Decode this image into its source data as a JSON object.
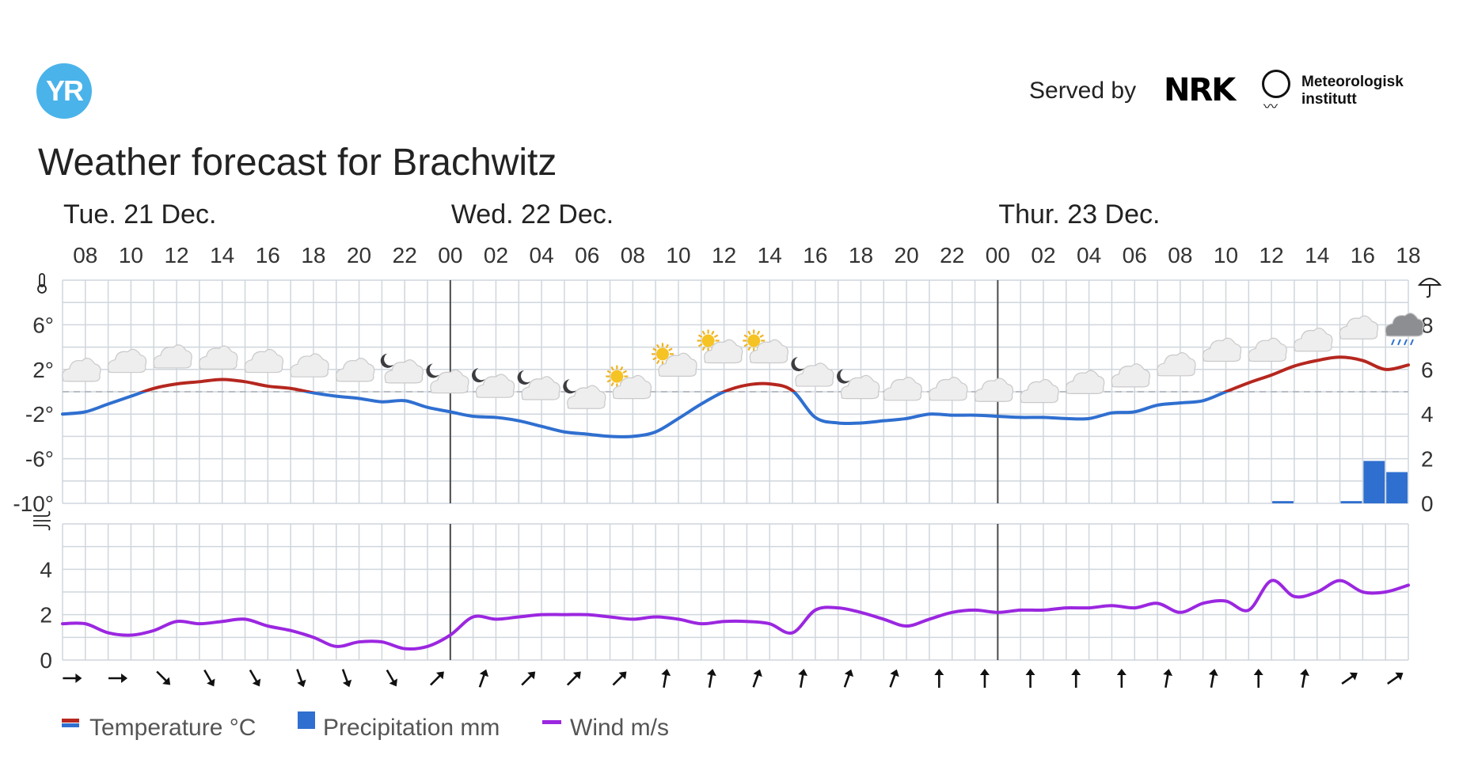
{
  "header": {
    "logo_text": "YR",
    "served_by": "Served by",
    "nrk_logo": "NRK",
    "met_line1": "Meteorologisk",
    "met_line2": "institutt",
    "title": "Weather forecast for Brachwitz"
  },
  "legend": {
    "temperature": "Temperature °C",
    "precipitation": "Precipitation mm",
    "wind": "Wind m/s"
  },
  "colors": {
    "temp_warm": "#b5271f",
    "temp_cold": "#2f6fd0",
    "precip": "#2f6fd0",
    "wind": "#9b27e0",
    "grid": "#cfd6dd",
    "day_line": "#4a4a4a",
    "zero_line": "#b9bec4"
  },
  "chart_data": {
    "type": "line",
    "days": [
      {
        "label": "Tue. 21 Dec.",
        "start_hour": 7
      },
      {
        "label": "Wed. 22 Dec.",
        "start_hour": 24
      },
      {
        "label": "Thur. 23 Dec.",
        "start_hour": 48
      }
    ],
    "x_ticks": [
      {
        "hour": 8,
        "label": "08"
      },
      {
        "hour": 10,
        "label": "10"
      },
      {
        "hour": 12,
        "label": "12"
      },
      {
        "hour": 14,
        "label": "14"
      },
      {
        "hour": 16,
        "label": "16"
      },
      {
        "hour": 18,
        "label": "18"
      },
      {
        "hour": 20,
        "label": "20"
      },
      {
        "hour": 22,
        "label": "22"
      },
      {
        "hour": 24,
        "label": "00"
      },
      {
        "hour": 26,
        "label": "02"
      },
      {
        "hour": 28,
        "label": "04"
      },
      {
        "hour": 30,
        "label": "06"
      },
      {
        "hour": 32,
        "label": "08"
      },
      {
        "hour": 34,
        "label": "10"
      },
      {
        "hour": 36,
        "label": "12"
      },
      {
        "hour": 38,
        "label": "14"
      },
      {
        "hour": 40,
        "label": "16"
      },
      {
        "hour": 42,
        "label": "18"
      },
      {
        "hour": 44,
        "label": "20"
      },
      {
        "hour": 46,
        "label": "22"
      },
      {
        "hour": 48,
        "label": "00"
      },
      {
        "hour": 50,
        "label": "02"
      },
      {
        "hour": 52,
        "label": "04"
      },
      {
        "hour": 54,
        "label": "06"
      },
      {
        "hour": 56,
        "label": "08"
      },
      {
        "hour": 58,
        "label": "10"
      },
      {
        "hour": 60,
        "label": "12"
      },
      {
        "hour": 62,
        "label": "14"
      },
      {
        "hour": 64,
        "label": "16"
      },
      {
        "hour": 66,
        "label": "18"
      }
    ],
    "x_range": [
      7,
      66
    ],
    "temperature": {
      "unit": "°C",
      "ylim": [
        -10,
        10
      ],
      "y_ticks": [
        {
          "value": 6,
          "label": "6°"
        },
        {
          "value": 2,
          "label": "2°"
        },
        {
          "value": -2,
          "label": "-2°"
        },
        {
          "value": -6,
          "label": "-6°"
        },
        {
          "value": -10,
          "label": "-10°"
        }
      ],
      "hours": [
        7,
        8,
        9,
        10,
        11,
        12,
        13,
        14,
        15,
        16,
        17,
        18,
        19,
        20,
        21,
        22,
        23,
        24,
        25,
        26,
        27,
        28,
        29,
        30,
        31,
        32,
        33,
        34,
        35,
        36,
        37,
        38,
        39,
        40,
        41,
        42,
        43,
        44,
        45,
        46,
        47,
        48,
        49,
        50,
        51,
        52,
        53,
        54,
        55,
        56,
        57,
        58,
        59,
        60,
        61,
        62,
        63,
        64,
        65,
        66
      ],
      "values": [
        -2.0,
        -1.8,
        -1.1,
        -0.4,
        0.3,
        0.7,
        0.9,
        1.1,
        0.9,
        0.5,
        0.3,
        -0.1,
        -0.4,
        -0.6,
        -0.9,
        -0.8,
        -1.4,
        -1.8,
        -2.2,
        -2.3,
        -2.6,
        -3.1,
        -3.6,
        -3.8,
        -4.0,
        -4.0,
        -3.6,
        -2.4,
        -1.1,
        0.0,
        0.6,
        0.7,
        0.1,
        -2.3,
        -2.8,
        -2.8,
        -2.6,
        -2.4,
        -2.0,
        -2.1,
        -2.1,
        -2.2,
        -2.3,
        -2.3,
        -2.4,
        -2.4,
        -1.9,
        -1.8,
        -1.2,
        -1.0,
        -0.8,
        0.0,
        0.8,
        1.5,
        2.3,
        2.8,
        3.1,
        2.8,
        2.0,
        2.4
      ]
    },
    "precipitation": {
      "unit": "mm",
      "ylim": [
        0,
        10
      ],
      "y_ticks": [
        {
          "value": 8,
          "label": "8"
        },
        {
          "value": 6,
          "label": "6"
        },
        {
          "value": 4,
          "label": "4"
        },
        {
          "value": 2,
          "label": "2"
        },
        {
          "value": 0,
          "label": "0"
        }
      ],
      "bars": [
        {
          "hour": 60,
          "value": 0.1
        },
        {
          "hour": 63,
          "value": 0.1
        },
        {
          "hour": 64,
          "value": 1.9
        },
        {
          "hour": 65,
          "value": 1.4
        }
      ]
    },
    "wind": {
      "unit": "m/s",
      "ylim": [
        0,
        6
      ],
      "y_ticks": [
        {
          "value": 4,
          "label": "4"
        },
        {
          "value": 2,
          "label": "2"
        },
        {
          "value": 0,
          "label": "0"
        }
      ],
      "hours": [
        7,
        8,
        9,
        10,
        11,
        12,
        13,
        14,
        15,
        16,
        17,
        18,
        19,
        20,
        21,
        22,
        23,
        24,
        25,
        26,
        27,
        28,
        29,
        30,
        31,
        32,
        33,
        34,
        35,
        36,
        37,
        38,
        39,
        40,
        41,
        42,
        43,
        44,
        45,
        46,
        47,
        48,
        49,
        50,
        51,
        52,
        53,
        54,
        55,
        56,
        57,
        58,
        59,
        60,
        61,
        62,
        63,
        64,
        65,
        66
      ],
      "values": [
        1.6,
        1.6,
        1.2,
        1.1,
        1.3,
        1.7,
        1.6,
        1.7,
        1.8,
        1.5,
        1.3,
        1.0,
        0.6,
        0.8,
        0.8,
        0.5,
        0.6,
        1.1,
        1.9,
        1.8,
        1.9,
        2.0,
        2.0,
        2.0,
        1.9,
        1.8,
        1.9,
        1.8,
        1.6,
        1.7,
        1.7,
        1.6,
        1.2,
        2.2,
        2.3,
        2.1,
        1.8,
        1.5,
        1.8,
        2.1,
        2.2,
        2.1,
        2.2,
        2.2,
        2.3,
        2.3,
        2.4,
        2.3,
        2.5,
        2.1,
        2.5,
        2.6,
        2.2,
        3.5,
        2.8,
        3.0,
        3.5,
        3.0,
        3.0,
        3.3
      ]
    },
    "wind_arrows": {
      "hours": [
        7,
        9,
        11,
        13,
        15,
        17,
        19,
        21,
        23,
        25,
        27,
        29,
        31,
        33,
        35,
        37,
        39,
        41,
        43,
        45,
        47,
        49,
        51,
        53,
        55,
        57,
        59,
        61,
        63,
        65
      ],
      "directions_deg": [
        270,
        270,
        315,
        330,
        330,
        340,
        340,
        330,
        225,
        200,
        225,
        225,
        225,
        190,
        190,
        200,
        190,
        200,
        200,
        180,
        180,
        180,
        180,
        180,
        190,
        190,
        180,
        190,
        235,
        235
      ]
    },
    "weather_symbols": {
      "hours": [
        8,
        10,
        12,
        14,
        16,
        18,
        20,
        22,
        24,
        26,
        28,
        30,
        32,
        34,
        36,
        38,
        40,
        42,
        44,
        46,
        48,
        50,
        52,
        54,
        56,
        58,
        60,
        62,
        64,
        66
      ],
      "symbols": [
        "cloud",
        "cloud",
        "cloud",
        "cloud",
        "cloud",
        "cloud",
        "cloud",
        "moon-cloud",
        "moon-cloud",
        "moon-cloud",
        "moon-cloud",
        "moon-cloud",
        "sun-cloud",
        "sun-cloud",
        "sun-cloud",
        "sun-cloud",
        "moon-cloud",
        "moon-cloud",
        "cloud",
        "cloud",
        "cloud",
        "cloud",
        "cloud",
        "cloud",
        "cloud",
        "cloud",
        "cloud",
        "cloud",
        "cloud",
        "rain-cloud"
      ],
      "levels": [
        1.5,
        2.3,
        2.7,
        2.6,
        2.3,
        1.9,
        1.5,
        1.5,
        0.6,
        0.2,
        0.0,
        -0.8,
        0.1,
        2.1,
        3.3,
        3.3,
        1.2,
        0.1,
        -0.2,
        -0.2,
        -0.3,
        -0.4,
        0.4,
        1.0,
        2.0,
        3.3,
        3.3,
        4.2,
        5.3,
        5.4
      ]
    }
  }
}
